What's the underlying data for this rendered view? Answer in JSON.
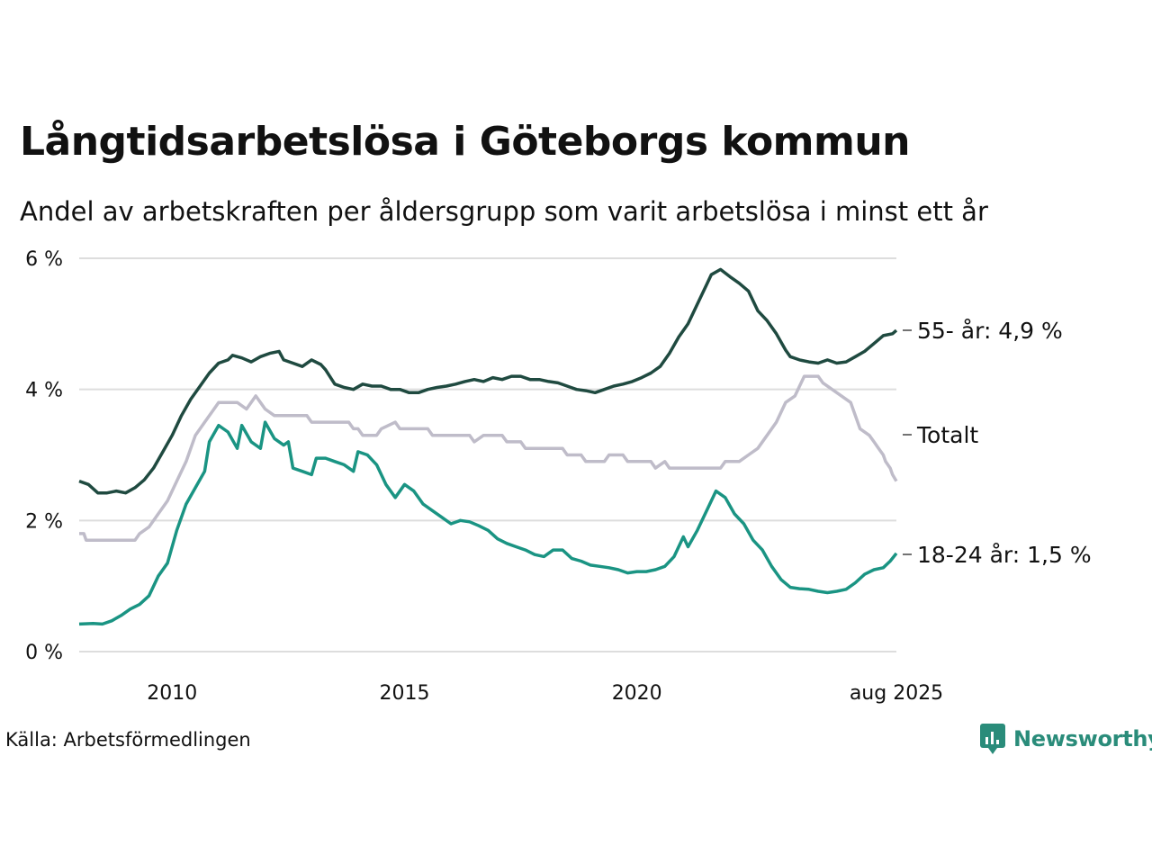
{
  "title": "Långtidsarbetslösa i Göteborgs kommun",
  "subtitle": "Andel av arbetskraften per åldersgrupp som varit arbetslösa i minst ett år",
  "source": "Källa: Arbetsförmedlingen",
  "brand": "Newsworthy",
  "colors": {
    "brand": "#2a8c7a",
    "grid": "#dddddd"
  },
  "chart_data": {
    "type": "line",
    "ylim": [
      0,
      6
    ],
    "yticks": [
      0,
      2,
      4,
      6
    ],
    "ytick_labels": [
      "0 %",
      "2 %",
      "4 %",
      "6 %"
    ],
    "xlim": [
      2008.0,
      2025.583
    ],
    "xticks": [
      2010,
      2015,
      2020,
      2025.583
    ],
    "xtick_labels": [
      "2010",
      "2015",
      "2020",
      "aug 2025"
    ],
    "grid": true,
    "series": [
      {
        "name": "55- år",
        "end_label": "55- år: 4,9 %",
        "color": "#1f4a40",
        "points": [
          [
            2008.0,
            2.6
          ],
          [
            2008.2,
            2.55
          ],
          [
            2008.4,
            2.42
          ],
          [
            2008.6,
            2.42
          ],
          [
            2008.8,
            2.45
          ],
          [
            2009.0,
            2.42
          ],
          [
            2009.2,
            2.5
          ],
          [
            2009.4,
            2.62
          ],
          [
            2009.6,
            2.8
          ],
          [
            2009.8,
            3.05
          ],
          [
            2010.0,
            3.3
          ],
          [
            2010.2,
            3.6
          ],
          [
            2010.4,
            3.85
          ],
          [
            2010.6,
            4.05
          ],
          [
            2010.8,
            4.25
          ],
          [
            2011.0,
            4.4
          ],
          [
            2011.2,
            4.45
          ],
          [
            2011.3,
            4.52
          ],
          [
            2011.5,
            4.48
          ],
          [
            2011.7,
            4.42
          ],
          [
            2011.9,
            4.5
          ],
          [
            2012.1,
            4.55
          ],
          [
            2012.3,
            4.58
          ],
          [
            2012.4,
            4.45
          ],
          [
            2012.6,
            4.4
          ],
          [
            2012.8,
            4.35
          ],
          [
            2013.0,
            4.45
          ],
          [
            2013.2,
            4.38
          ],
          [
            2013.3,
            4.3
          ],
          [
            2013.5,
            4.08
          ],
          [
            2013.7,
            4.03
          ],
          [
            2013.9,
            4.0
          ],
          [
            2014.1,
            4.08
          ],
          [
            2014.3,
            4.05
          ],
          [
            2014.5,
            4.05
          ],
          [
            2014.7,
            4.0
          ],
          [
            2014.9,
            4.0
          ],
          [
            2015.1,
            3.95
          ],
          [
            2015.3,
            3.95
          ],
          [
            2015.5,
            4.0
          ],
          [
            2015.7,
            4.03
          ],
          [
            2015.9,
            4.05
          ],
          [
            2016.1,
            4.08
          ],
          [
            2016.3,
            4.12
          ],
          [
            2016.5,
            4.15
          ],
          [
            2016.7,
            4.12
          ],
          [
            2016.9,
            4.18
          ],
          [
            2017.1,
            4.15
          ],
          [
            2017.3,
            4.2
          ],
          [
            2017.5,
            4.2
          ],
          [
            2017.7,
            4.15
          ],
          [
            2017.9,
            4.15
          ],
          [
            2018.1,
            4.12
          ],
          [
            2018.3,
            4.1
          ],
          [
            2018.5,
            4.05
          ],
          [
            2018.7,
            4.0
          ],
          [
            2018.9,
            3.98
          ],
          [
            2019.1,
            3.95
          ],
          [
            2019.3,
            4.0
          ],
          [
            2019.5,
            4.05
          ],
          [
            2019.7,
            4.08
          ],
          [
            2019.9,
            4.12
          ],
          [
            2020.1,
            4.18
          ],
          [
            2020.3,
            4.25
          ],
          [
            2020.5,
            4.35
          ],
          [
            2020.7,
            4.55
          ],
          [
            2020.9,
            4.8
          ],
          [
            2021.1,
            5.0
          ],
          [
            2021.3,
            5.3
          ],
          [
            2021.5,
            5.6
          ],
          [
            2021.6,
            5.75
          ],
          [
            2021.8,
            5.83
          ],
          [
            2022.0,
            5.72
          ],
          [
            2022.2,
            5.62
          ],
          [
            2022.4,
            5.5
          ],
          [
            2022.6,
            5.2
          ],
          [
            2022.8,
            5.05
          ],
          [
            2023.0,
            4.85
          ],
          [
            2023.2,
            4.6
          ],
          [
            2023.3,
            4.5
          ],
          [
            2023.5,
            4.45
          ],
          [
            2023.7,
            4.42
          ],
          [
            2023.9,
            4.4
          ],
          [
            2024.1,
            4.45
          ],
          [
            2024.3,
            4.4
          ],
          [
            2024.5,
            4.42
          ],
          [
            2024.7,
            4.5
          ],
          [
            2024.9,
            4.58
          ],
          [
            2025.1,
            4.7
          ],
          [
            2025.3,
            4.82
          ],
          [
            2025.5,
            4.85
          ],
          [
            2025.583,
            4.9
          ]
        ]
      },
      {
        "name": "Totalt",
        "end_label": "Totalt",
        "color": "#bfbcc9",
        "points": [
          [
            2008.0,
            1.8
          ],
          [
            2008.1,
            1.8
          ],
          [
            2008.15,
            1.7
          ],
          [
            2008.5,
            1.7
          ],
          [
            2009.0,
            1.7
          ],
          [
            2009.2,
            1.7
          ],
          [
            2009.3,
            1.8
          ],
          [
            2009.5,
            1.9
          ],
          [
            2009.7,
            2.1
          ],
          [
            2009.9,
            2.3
          ],
          [
            2010.1,
            2.6
          ],
          [
            2010.3,
            2.9
          ],
          [
            2010.5,
            3.3
          ],
          [
            2010.7,
            3.5
          ],
          [
            2010.9,
            3.7
          ],
          [
            2011.0,
            3.8
          ],
          [
            2011.4,
            3.8
          ],
          [
            2011.6,
            3.7
          ],
          [
            2011.8,
            3.9
          ],
          [
            2012.0,
            3.7
          ],
          [
            2012.2,
            3.6
          ],
          [
            2012.9,
            3.6
          ],
          [
            2013.0,
            3.5
          ],
          [
            2013.8,
            3.5
          ],
          [
            2013.9,
            3.4
          ],
          [
            2014.0,
            3.4
          ],
          [
            2014.1,
            3.3
          ],
          [
            2014.4,
            3.3
          ],
          [
            2014.5,
            3.4
          ],
          [
            2014.8,
            3.5
          ],
          [
            2014.9,
            3.4
          ],
          [
            2015.5,
            3.4
          ],
          [
            2015.6,
            3.3
          ],
          [
            2016.4,
            3.3
          ],
          [
            2016.5,
            3.2
          ],
          [
            2016.7,
            3.3
          ],
          [
            2017.1,
            3.3
          ],
          [
            2017.2,
            3.2
          ],
          [
            2017.5,
            3.2
          ],
          [
            2017.6,
            3.1
          ],
          [
            2018.4,
            3.1
          ],
          [
            2018.5,
            3.0
          ],
          [
            2018.8,
            3.0
          ],
          [
            2018.9,
            2.9
          ],
          [
            2019.3,
            2.9
          ],
          [
            2019.4,
            3.0
          ],
          [
            2019.7,
            3.0
          ],
          [
            2019.8,
            2.9
          ],
          [
            2020.3,
            2.9
          ],
          [
            2020.4,
            2.8
          ],
          [
            2020.6,
            2.9
          ],
          [
            2020.7,
            2.8
          ],
          [
            2021.8,
            2.8
          ],
          [
            2021.9,
            2.9
          ],
          [
            2022.2,
            2.9
          ],
          [
            2022.4,
            3.0
          ],
          [
            2022.6,
            3.1
          ],
          [
            2022.8,
            3.3
          ],
          [
            2023.0,
            3.5
          ],
          [
            2023.2,
            3.8
          ],
          [
            2023.4,
            3.9
          ],
          [
            2023.6,
            4.2
          ],
          [
            2023.9,
            4.2
          ],
          [
            2024.0,
            4.1
          ],
          [
            2024.2,
            4.0
          ],
          [
            2024.4,
            3.9
          ],
          [
            2024.6,
            3.8
          ],
          [
            2024.7,
            3.6
          ],
          [
            2024.8,
            3.4
          ],
          [
            2025.0,
            3.3
          ],
          [
            2025.1,
            3.2
          ],
          [
            2025.2,
            3.1
          ],
          [
            2025.3,
            3.0
          ],
          [
            2025.35,
            2.9
          ],
          [
            2025.45,
            2.8
          ],
          [
            2025.5,
            2.7
          ],
          [
            2025.583,
            2.6
          ]
        ]
      },
      {
        "name": "18-24 år",
        "end_label": "18-24 år: 1,5 %",
        "color": "#1a9483",
        "points": [
          [
            2008.0,
            0.42
          ],
          [
            2008.3,
            0.43
          ],
          [
            2008.5,
            0.42
          ],
          [
            2008.7,
            0.47
          ],
          [
            2008.9,
            0.55
          ],
          [
            2009.1,
            0.65
          ],
          [
            2009.3,
            0.72
          ],
          [
            2009.5,
            0.85
          ],
          [
            2009.7,
            1.15
          ],
          [
            2009.9,
            1.35
          ],
          [
            2010.1,
            1.85
          ],
          [
            2010.3,
            2.25
          ],
          [
            2010.5,
            2.5
          ],
          [
            2010.7,
            2.75
          ],
          [
            2010.8,
            3.2
          ],
          [
            2011.0,
            3.45
          ],
          [
            2011.2,
            3.35
          ],
          [
            2011.4,
            3.1
          ],
          [
            2011.5,
            3.45
          ],
          [
            2011.7,
            3.2
          ],
          [
            2011.9,
            3.1
          ],
          [
            2012.0,
            3.5
          ],
          [
            2012.2,
            3.25
          ],
          [
            2012.4,
            3.15
          ],
          [
            2012.5,
            3.2
          ],
          [
            2012.6,
            2.8
          ],
          [
            2012.8,
            2.75
          ],
          [
            2013.0,
            2.7
          ],
          [
            2013.1,
            2.95
          ],
          [
            2013.3,
            2.95
          ],
          [
            2013.5,
            2.9
          ],
          [
            2013.7,
            2.85
          ],
          [
            2013.9,
            2.75
          ],
          [
            2014.0,
            3.05
          ],
          [
            2014.2,
            3.0
          ],
          [
            2014.4,
            2.85
          ],
          [
            2014.6,
            2.55
          ],
          [
            2014.8,
            2.35
          ],
          [
            2015.0,
            2.55
          ],
          [
            2015.2,
            2.45
          ],
          [
            2015.4,
            2.25
          ],
          [
            2015.6,
            2.15
          ],
          [
            2015.8,
            2.05
          ],
          [
            2016.0,
            1.95
          ],
          [
            2016.2,
            2.0
          ],
          [
            2016.4,
            1.98
          ],
          [
            2016.6,
            1.92
          ],
          [
            2016.8,
            1.85
          ],
          [
            2017.0,
            1.72
          ],
          [
            2017.2,
            1.65
          ],
          [
            2017.4,
            1.6
          ],
          [
            2017.6,
            1.55
          ],
          [
            2017.8,
            1.48
          ],
          [
            2018.0,
            1.45
          ],
          [
            2018.2,
            1.55
          ],
          [
            2018.4,
            1.55
          ],
          [
            2018.6,
            1.42
          ],
          [
            2018.8,
            1.38
          ],
          [
            2019.0,
            1.32
          ],
          [
            2019.2,
            1.3
          ],
          [
            2019.4,
            1.28
          ],
          [
            2019.6,
            1.25
          ],
          [
            2019.8,
            1.2
          ],
          [
            2020.0,
            1.22
          ],
          [
            2020.2,
            1.22
          ],
          [
            2020.4,
            1.25
          ],
          [
            2020.6,
            1.3
          ],
          [
            2020.8,
            1.45
          ],
          [
            2021.0,
            1.75
          ],
          [
            2021.1,
            1.6
          ],
          [
            2021.3,
            1.85
          ],
          [
            2021.5,
            2.15
          ],
          [
            2021.7,
            2.45
          ],
          [
            2021.9,
            2.35
          ],
          [
            2022.1,
            2.1
          ],
          [
            2022.3,
            1.95
          ],
          [
            2022.5,
            1.7
          ],
          [
            2022.7,
            1.55
          ],
          [
            2022.9,
            1.3
          ],
          [
            2023.1,
            1.1
          ],
          [
            2023.3,
            0.98
          ],
          [
            2023.5,
            0.96
          ],
          [
            2023.7,
            0.95
          ],
          [
            2023.9,
            0.92
          ],
          [
            2024.1,
            0.9
          ],
          [
            2024.3,
            0.92
          ],
          [
            2024.5,
            0.95
          ],
          [
            2024.7,
            1.05
          ],
          [
            2024.9,
            1.18
          ],
          [
            2025.1,
            1.25
          ],
          [
            2025.3,
            1.28
          ],
          [
            2025.45,
            1.38
          ],
          [
            2025.583,
            1.5
          ]
        ]
      }
    ]
  }
}
